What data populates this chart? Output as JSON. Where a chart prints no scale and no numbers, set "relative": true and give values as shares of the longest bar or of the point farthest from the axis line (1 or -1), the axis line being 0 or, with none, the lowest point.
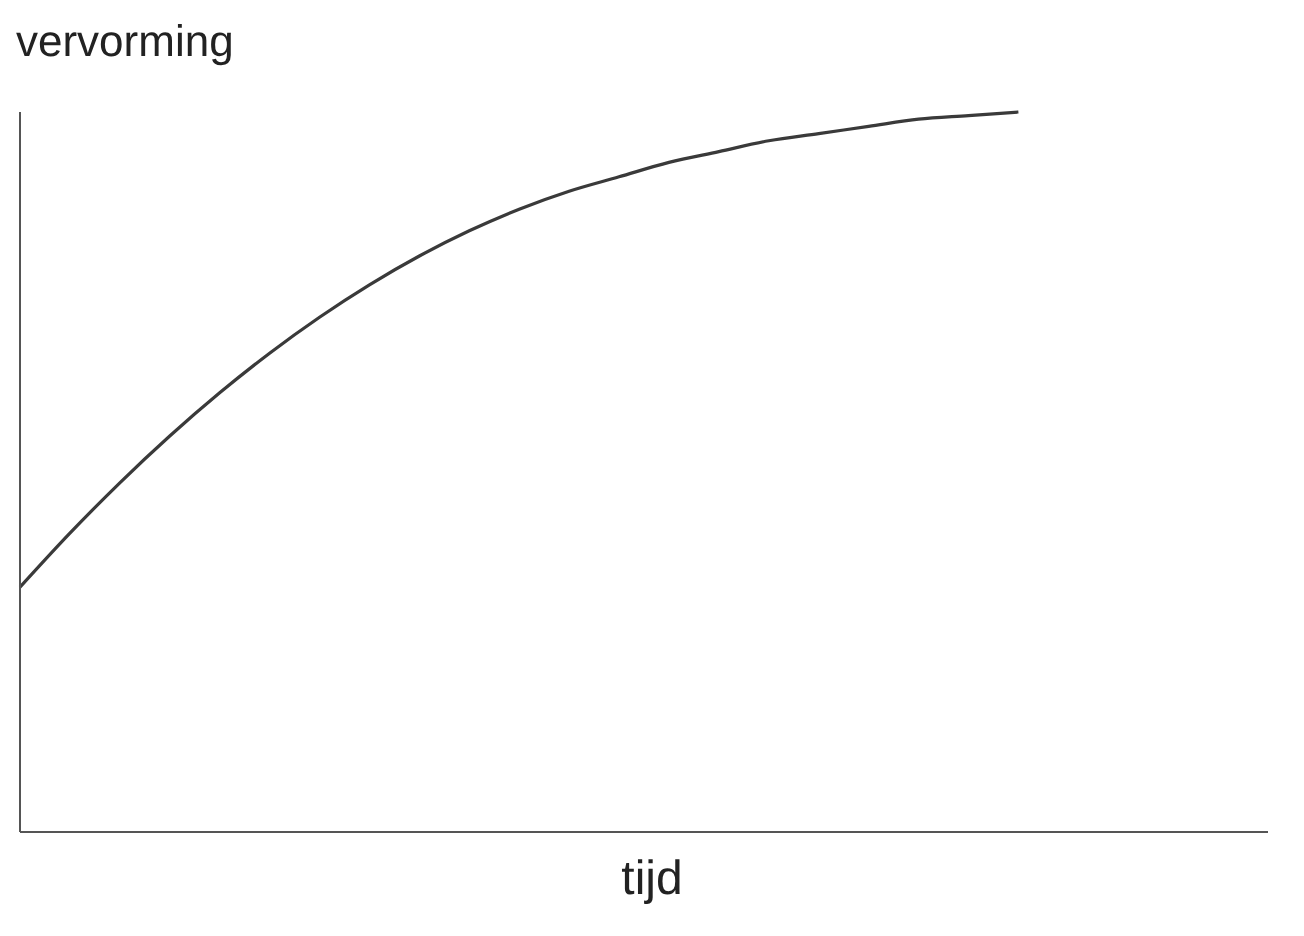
{
  "chart_data": {
    "type": "line",
    "relative": true,
    "xlabel": "tijd",
    "ylabel": "vervorming",
    "categories": [
      null,
      null,
      null,
      null,
      null,
      null,
      null,
      null,
      null,
      null,
      null,
      null,
      null,
      null,
      null,
      null,
      null,
      null,
      null,
      null,
      null,
      null,
      null,
      null,
      null,
      null
    ],
    "series": [
      {
        "color": "#3a3a3a",
        "values": [
          0.34,
          0.415,
          0.485,
          0.55,
          0.61,
          0.665,
          0.715,
          0.76,
          0.8,
          0.835,
          0.865,
          0.89,
          0.91,
          0.93,
          0.945,
          0.96,
          0.97,
          0.98,
          0.99,
          0.995,
          1,
          null,
          null,
          null,
          null,
          null
        ]
      }
    ],
    "marker": "none",
    "line_style": "solid"
  }
}
